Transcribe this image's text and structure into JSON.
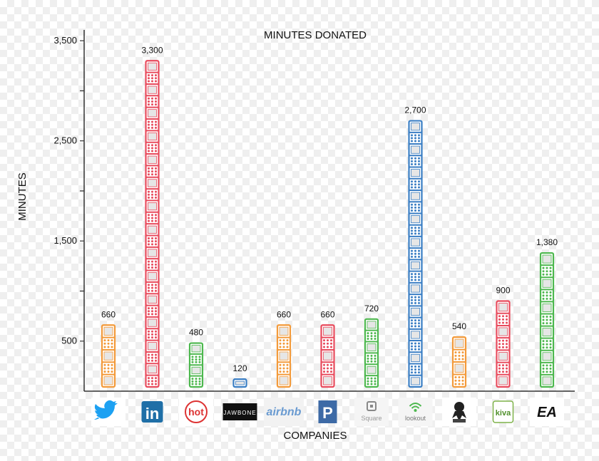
{
  "chart_data": {
    "type": "bar",
    "title": "MINUTES DONATED",
    "xlabel": "COMPANIES",
    "ylabel": "MINUTES",
    "ylim": [
      0,
      3800
    ],
    "yticks": [
      500,
      1500,
      2500,
      3500
    ],
    "ytick_labels": [
      "500",
      "1,500",
      "2,500",
      "3,500"
    ],
    "categories": [
      "Twitter",
      "LinkedIn",
      "Hot",
      "Jawbone",
      "Airbnb",
      "Pandora",
      "Square",
      "Lookout",
      "GitHub",
      "Kiva",
      "EA"
    ],
    "values": [
      660,
      3300,
      480,
      120,
      660,
      660,
      720,
      2700,
      540,
      900,
      1380
    ],
    "value_labels": [
      "660",
      "3,300",
      "480",
      "120",
      "660",
      "660",
      "720",
      "2,700",
      "540",
      "900",
      "1,380"
    ],
    "colors": [
      "#f39a3a",
      "#e84a5c",
      "#4db84e",
      "#3a7ec4",
      "#f39a3a",
      "#e84a5c",
      "#4db84e",
      "#3a7ec4",
      "#f39a3a",
      "#e84a5c",
      "#4db84e"
    ],
    "grid": false,
    "legend": "none"
  },
  "logos": [
    {
      "icon": "twitter-bird-icon",
      "text": ""
    },
    {
      "icon": "linkedin-logo-icon",
      "text": "in"
    },
    {
      "icon": "hot-logo-icon",
      "text": "hot"
    },
    {
      "icon": "jawbone-logo-icon",
      "text": "JAWBONE"
    },
    {
      "icon": "airbnb-logo-icon",
      "text": "airbnb"
    },
    {
      "icon": "pandora-logo-icon",
      "text": "P"
    },
    {
      "icon": "square-logo-icon",
      "text": "Square"
    },
    {
      "icon": "lookout-logo-icon",
      "text": "lookout"
    },
    {
      "icon": "github-octocat-icon",
      "text": ""
    },
    {
      "icon": "kiva-logo-icon",
      "text": "kiva"
    },
    {
      "icon": "ea-logo-icon",
      "text": "EA"
    }
  ]
}
